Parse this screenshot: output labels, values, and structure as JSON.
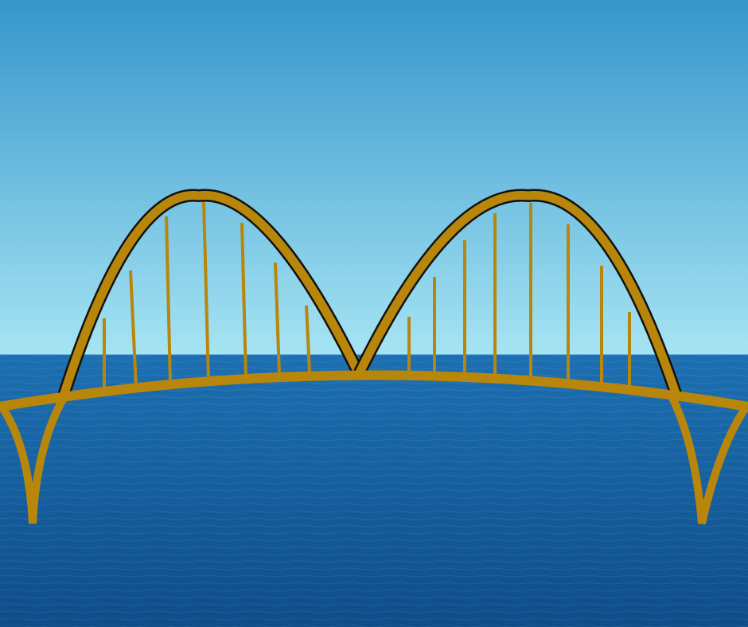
{
  "scene": {
    "subject": "bridge-illustration",
    "elements": [
      "sky",
      "sea",
      "horizon",
      "left-arch",
      "right-arch",
      "deck",
      "hangers",
      "left-support-legs",
      "right-support-legs"
    ]
  },
  "colors": {
    "sky_top": "#3596cc",
    "sky_bottom": "#a6e4f3",
    "sea_top": "#1d70b2",
    "sea_bottom": "#0e4d8a",
    "bridge_gold": "#b8860b",
    "arch_outline": "#111111"
  },
  "counts": {
    "arches": 2,
    "hangers_left_arch": 7,
    "hangers_right_arch": 8,
    "support_legs": 2
  }
}
